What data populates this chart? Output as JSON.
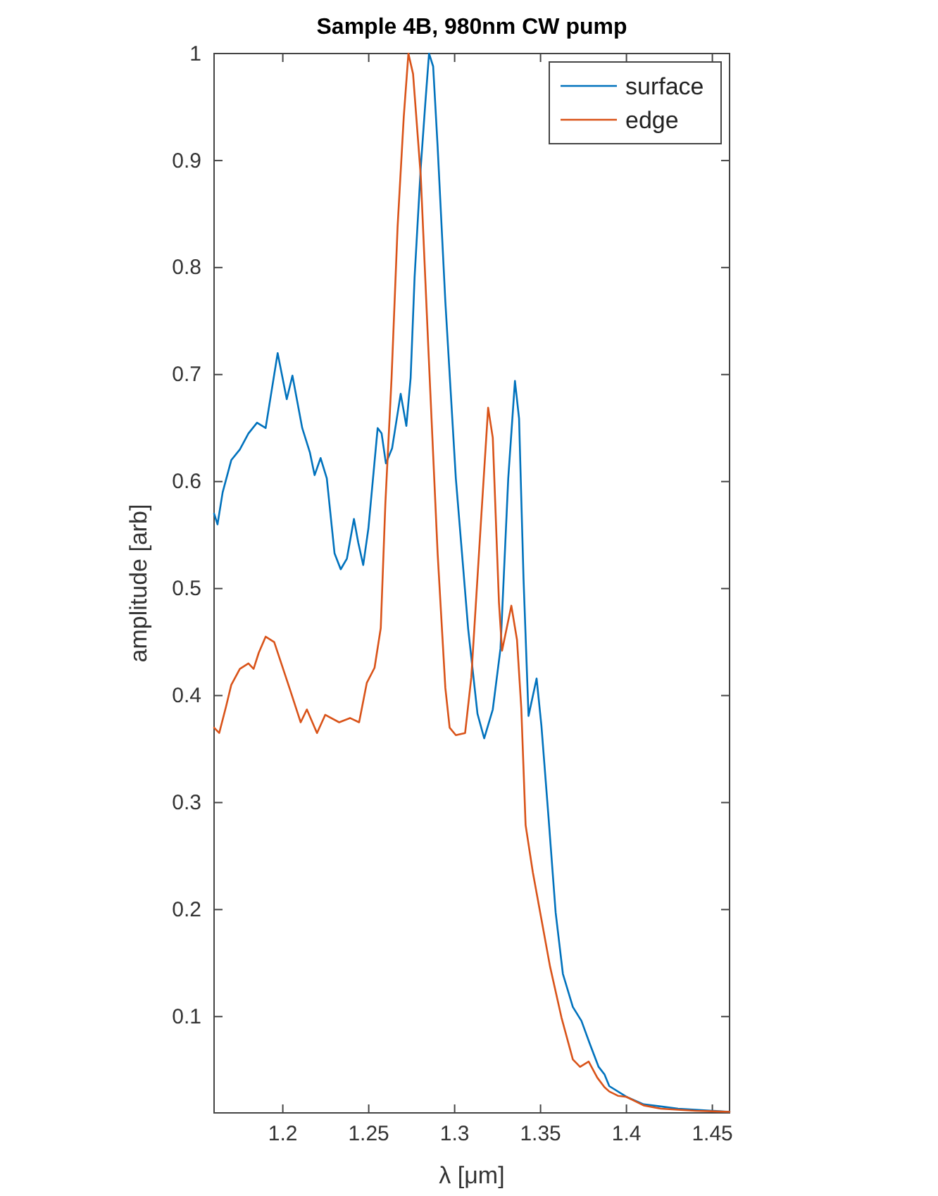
{
  "chart_data": {
    "type": "line",
    "title": "Sample 4B, 980nm CW pump",
    "xlabel": "λ [μm]",
    "ylabel": "amplitude [arb]",
    "xlim": [
      1.16,
      1.46
    ],
    "ylim": [
      0.01,
      1
    ],
    "xticks": [
      1.2,
      1.25,
      1.3,
      1.35,
      1.4,
      1.45
    ],
    "yticks": [
      0.1,
      0.2,
      0.3,
      0.4,
      0.5,
      0.6,
      0.7,
      0.8,
      0.9,
      1
    ],
    "grid": false,
    "legend": "top right",
    "marker": "none",
    "line_style": "solid",
    "series": [
      {
        "name": "surface",
        "color": "#0072bd",
        "x": [
          1.16,
          1.162,
          1.165,
          1.17,
          1.175,
          1.18,
          1.185,
          1.19,
          1.193,
          1.197,
          1.2023,
          1.2056,
          1.2113,
          1.2158,
          1.2185,
          1.222,
          1.2256,
          1.2301,
          1.2337,
          1.2373,
          1.2414,
          1.2439,
          1.2468,
          1.2498,
          1.2552,
          1.2575,
          1.26,
          1.2636,
          1.2686,
          1.2719,
          1.2744,
          1.2767,
          1.2803,
          1.283,
          1.2851,
          1.2875,
          1.2901,
          1.2946,
          1.3007,
          1.3079,
          1.3133,
          1.3172,
          1.3222,
          1.3267,
          1.3312,
          1.3351,
          1.3375,
          1.3401,
          1.343,
          1.3477,
          1.3505,
          1.3547,
          1.3588,
          1.363,
          1.3688,
          1.3738,
          1.3788,
          1.3838,
          1.3872,
          1.39,
          1.4,
          1.41,
          1.42,
          1.43,
          1.44,
          1.45,
          1.46
        ],
        "values": [
          0.57,
          0.56,
          0.59,
          0.62,
          0.63,
          0.645,
          0.655,
          0.65,
          0.68,
          0.72,
          0.677,
          0.699,
          0.65,
          0.627,
          0.606,
          0.622,
          0.603,
          0.533,
          0.518,
          0.528,
          0.565,
          0.543,
          0.522,
          0.556,
          0.65,
          0.645,
          0.617,
          0.631,
          0.682,
          0.652,
          0.697,
          0.791,
          0.894,
          0.955,
          1.0,
          0.988,
          0.913,
          0.768,
          0.603,
          0.462,
          0.383,
          0.36,
          0.387,
          0.444,
          0.603,
          0.694,
          0.659,
          0.509,
          0.381,
          0.416,
          0.372,
          0.285,
          0.197,
          0.14,
          0.109,
          0.096,
          0.074,
          0.053,
          0.046,
          0.035,
          0.025,
          0.018,
          0.016,
          0.014,
          0.013,
          0.012,
          0.011
        ]
      },
      {
        "name": "edge",
        "color": "#d95319",
        "x": [
          1.16,
          1.163,
          1.167,
          1.17,
          1.175,
          1.18,
          1.183,
          1.186,
          1.19,
          1.195,
          1.2041,
          1.2104,
          1.214,
          1.2199,
          1.2247,
          1.2328,
          1.2391,
          1.2444,
          1.2489,
          1.2534,
          1.257,
          1.2597,
          1.2633,
          1.2668,
          1.2704,
          1.2731,
          1.2758,
          1.2803,
          1.2848,
          1.2901,
          1.2946,
          1.2971,
          1.3007,
          1.3061,
          1.3097,
          1.3151,
          1.3195,
          1.3222,
          1.3258,
          1.3276,
          1.333,
          1.3363,
          1.3388,
          1.3413,
          1.3455,
          1.3505,
          1.3555,
          1.3622,
          1.3688,
          1.373,
          1.378,
          1.383,
          1.3872,
          1.39,
          1.395,
          1.4,
          1.41,
          1.42,
          1.44,
          1.46
        ],
        "values": [
          0.37,
          0.365,
          0.39,
          0.41,
          0.425,
          0.43,
          0.425,
          0.44,
          0.455,
          0.45,
          0.406,
          0.375,
          0.387,
          0.365,
          0.382,
          0.375,
          0.379,
          0.375,
          0.412,
          0.426,
          0.463,
          0.58,
          0.697,
          0.838,
          0.941,
          1.0,
          0.981,
          0.885,
          0.721,
          0.533,
          0.407,
          0.37,
          0.363,
          0.365,
          0.417,
          0.557,
          0.669,
          0.641,
          0.487,
          0.442,
          0.484,
          0.452,
          0.388,
          0.279,
          0.235,
          0.191,
          0.147,
          0.099,
          0.06,
          0.053,
          0.058,
          0.043,
          0.034,
          0.03,
          0.026,
          0.025,
          0.017,
          0.014,
          0.012,
          0.011
        ]
      }
    ]
  }
}
